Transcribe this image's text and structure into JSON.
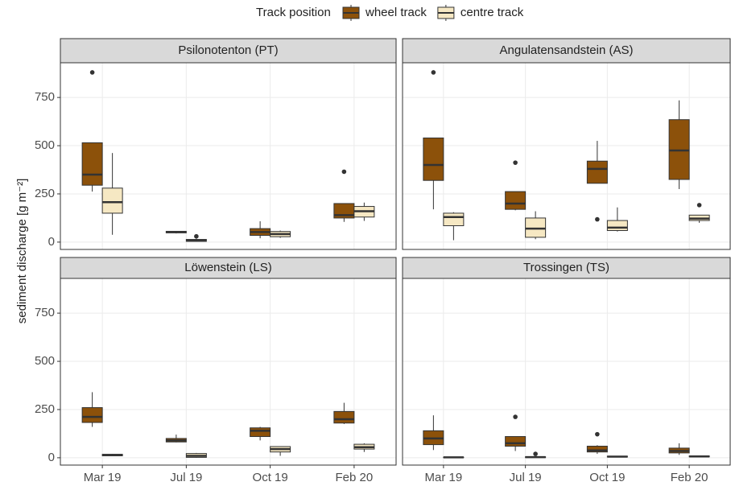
{
  "legend_title": "Track position",
  "y_label": "sediment discharge [g m⁻²]",
  "chart_data": [
    {
      "type": "box",
      "title": "Psilonotenton (PT)",
      "categories": [
        "Mar 19",
        "Jul 19",
        "Oct 19",
        "Feb 20"
      ],
      "ylim": [
        -38,
        930
      ],
      "yticks": [
        0,
        250,
        500,
        750
      ],
      "grid": true,
      "series": [
        {
          "name": "wheel track",
          "color": "#8c510a",
          "values": [
            {
              "min": 262,
              "q1": 295,
              "median": 350,
              "q3": 515,
              "max": 515,
              "outliers": [
                880
              ]
            },
            {
              "min": 45,
              "q1": 48,
              "median": 52,
              "q3": 56,
              "max": 58,
              "outliers": []
            },
            {
              "min": 20,
              "q1": 35,
              "median": 52,
              "q3": 70,
              "max": 108,
              "outliers": []
            },
            {
              "min": 105,
              "q1": 125,
              "median": 140,
              "q3": 200,
              "max": 200,
              "outliers": [
                365
              ]
            }
          ]
        },
        {
          "name": "centre track",
          "color": "#f6e8c3",
          "values": [
            {
              "min": 38,
              "q1": 150,
              "median": 207,
              "q3": 280,
              "max": 462,
              "outliers": []
            },
            {
              "min": 2,
              "q1": 4,
              "median": 8,
              "q3": 14,
              "max": 18,
              "outliers": [
                30
              ]
            },
            {
              "min": 22,
              "q1": 28,
              "median": 42,
              "q3": 55,
              "max": 60,
              "outliers": []
            },
            {
              "min": 110,
              "q1": 130,
              "median": 160,
              "q3": 185,
              "max": 205,
              "outliers": []
            }
          ]
        }
      ]
    },
    {
      "type": "box",
      "title": "Angulatensandstein (AS)",
      "categories": [
        "Mar 19",
        "Jul 19",
        "Oct 19",
        "Feb 20"
      ],
      "ylim": [
        -38,
        930
      ],
      "yticks": [
        0,
        250,
        500,
        750
      ],
      "grid": true,
      "series": [
        {
          "name": "wheel track",
          "color": "#8c510a",
          "values": [
            {
              "min": 170,
              "q1": 320,
              "median": 400,
              "q3": 540,
              "max": 540,
              "outliers": [
                880
              ]
            },
            {
              "min": 165,
              "q1": 170,
              "median": 200,
              "q3": 262,
              "max": 262,
              "outliers": [
                412
              ]
            },
            {
              "min": 305,
              "q1": 305,
              "median": 380,
              "q3": 420,
              "max": 525,
              "outliers": [
                118
              ]
            },
            {
              "min": 275,
              "q1": 325,
              "median": 475,
              "q3": 635,
              "max": 735,
              "outliers": []
            }
          ]
        },
        {
          "name": "centre track",
          "color": "#f6e8c3",
          "values": [
            {
              "min": 10,
              "q1": 85,
              "median": 130,
              "q3": 150,
              "max": 155,
              "outliers": []
            },
            {
              "min": 15,
              "q1": 25,
              "median": 70,
              "q3": 125,
              "max": 160,
              "outliers": []
            },
            {
              "min": 55,
              "q1": 60,
              "median": 75,
              "q3": 112,
              "max": 180,
              "outliers": []
            },
            {
              "min": 100,
              "q1": 112,
              "median": 122,
              "q3": 140,
              "max": 140,
              "outliers": [
                192
              ]
            }
          ]
        }
      ]
    },
    {
      "type": "box",
      "title": "Löwenstein (LS)",
      "categories": [
        "Mar 19",
        "Jul 19",
        "Oct 19",
        "Feb 20"
      ],
      "ylim": [
        -38,
        930
      ],
      "yticks": [
        0,
        250,
        500,
        750
      ],
      "grid": true,
      "series": [
        {
          "name": "wheel track",
          "color": "#8c510a",
          "values": [
            {
              "min": 160,
              "q1": 183,
              "median": 212,
              "q3": 260,
              "max": 340,
              "outliers": []
            },
            {
              "min": 80,
              "q1": 82,
              "median": 90,
              "q3": 100,
              "max": 120,
              "outliers": []
            },
            {
              "min": 90,
              "q1": 110,
              "median": 140,
              "q3": 155,
              "max": 160,
              "outliers": []
            },
            {
              "min": 175,
              "q1": 180,
              "median": 200,
              "q3": 240,
              "max": 285,
              "outliers": []
            }
          ]
        },
        {
          "name": "centre track",
          "color": "#f6e8c3",
          "values": [
            {
              "min": 8,
              "q1": 10,
              "median": 14,
              "q3": 18,
              "max": 20,
              "outliers": []
            },
            {
              "min": 0,
              "q1": 2,
              "median": 10,
              "q3": 22,
              "max": 25,
              "outliers": []
            },
            {
              "min": 10,
              "q1": 30,
              "median": 45,
              "q3": 58,
              "max": 60,
              "outliers": []
            },
            {
              "min": 30,
              "q1": 45,
              "median": 55,
              "q3": 70,
              "max": 75,
              "outliers": []
            }
          ]
        }
      ]
    },
    {
      "type": "box",
      "title": "Trossingen (TS)",
      "categories": [
        "Mar 19",
        "Jul 19",
        "Oct 19",
        "Feb 20"
      ],
      "ylim": [
        -38,
        930
      ],
      "yticks": [
        0,
        250,
        500,
        750
      ],
      "grid": true,
      "series": [
        {
          "name": "wheel track",
          "color": "#8c510a",
          "values": [
            {
              "min": 40,
              "q1": 68,
              "median": 100,
              "q3": 140,
              "max": 220,
              "outliers": []
            },
            {
              "min": 35,
              "q1": 60,
              "median": 75,
              "q3": 110,
              "max": 110,
              "outliers": [
                212
              ]
            },
            {
              "min": 20,
              "q1": 30,
              "median": 38,
              "q3": 60,
              "max": 65,
              "outliers": [
                122
              ]
            },
            {
              "min": 15,
              "q1": 25,
              "median": 35,
              "q3": 50,
              "max": 75,
              "outliers": []
            }
          ]
        },
        {
          "name": "centre track",
          "color": "#f6e8c3",
          "values": [
            {
              "min": 0,
              "q1": 1,
              "median": 2,
              "q3": 3,
              "max": 4,
              "outliers": []
            },
            {
              "min": 0,
              "q1": 1,
              "median": 3,
              "q3": 5,
              "max": 8,
              "outliers": [
                20
              ]
            },
            {
              "min": 2,
              "q1": 4,
              "median": 6,
              "q3": 8,
              "max": 10,
              "outliers": []
            },
            {
              "min": 3,
              "q1": 5,
              "median": 7,
              "q3": 9,
              "max": 10,
              "outliers": []
            }
          ]
        }
      ]
    }
  ]
}
